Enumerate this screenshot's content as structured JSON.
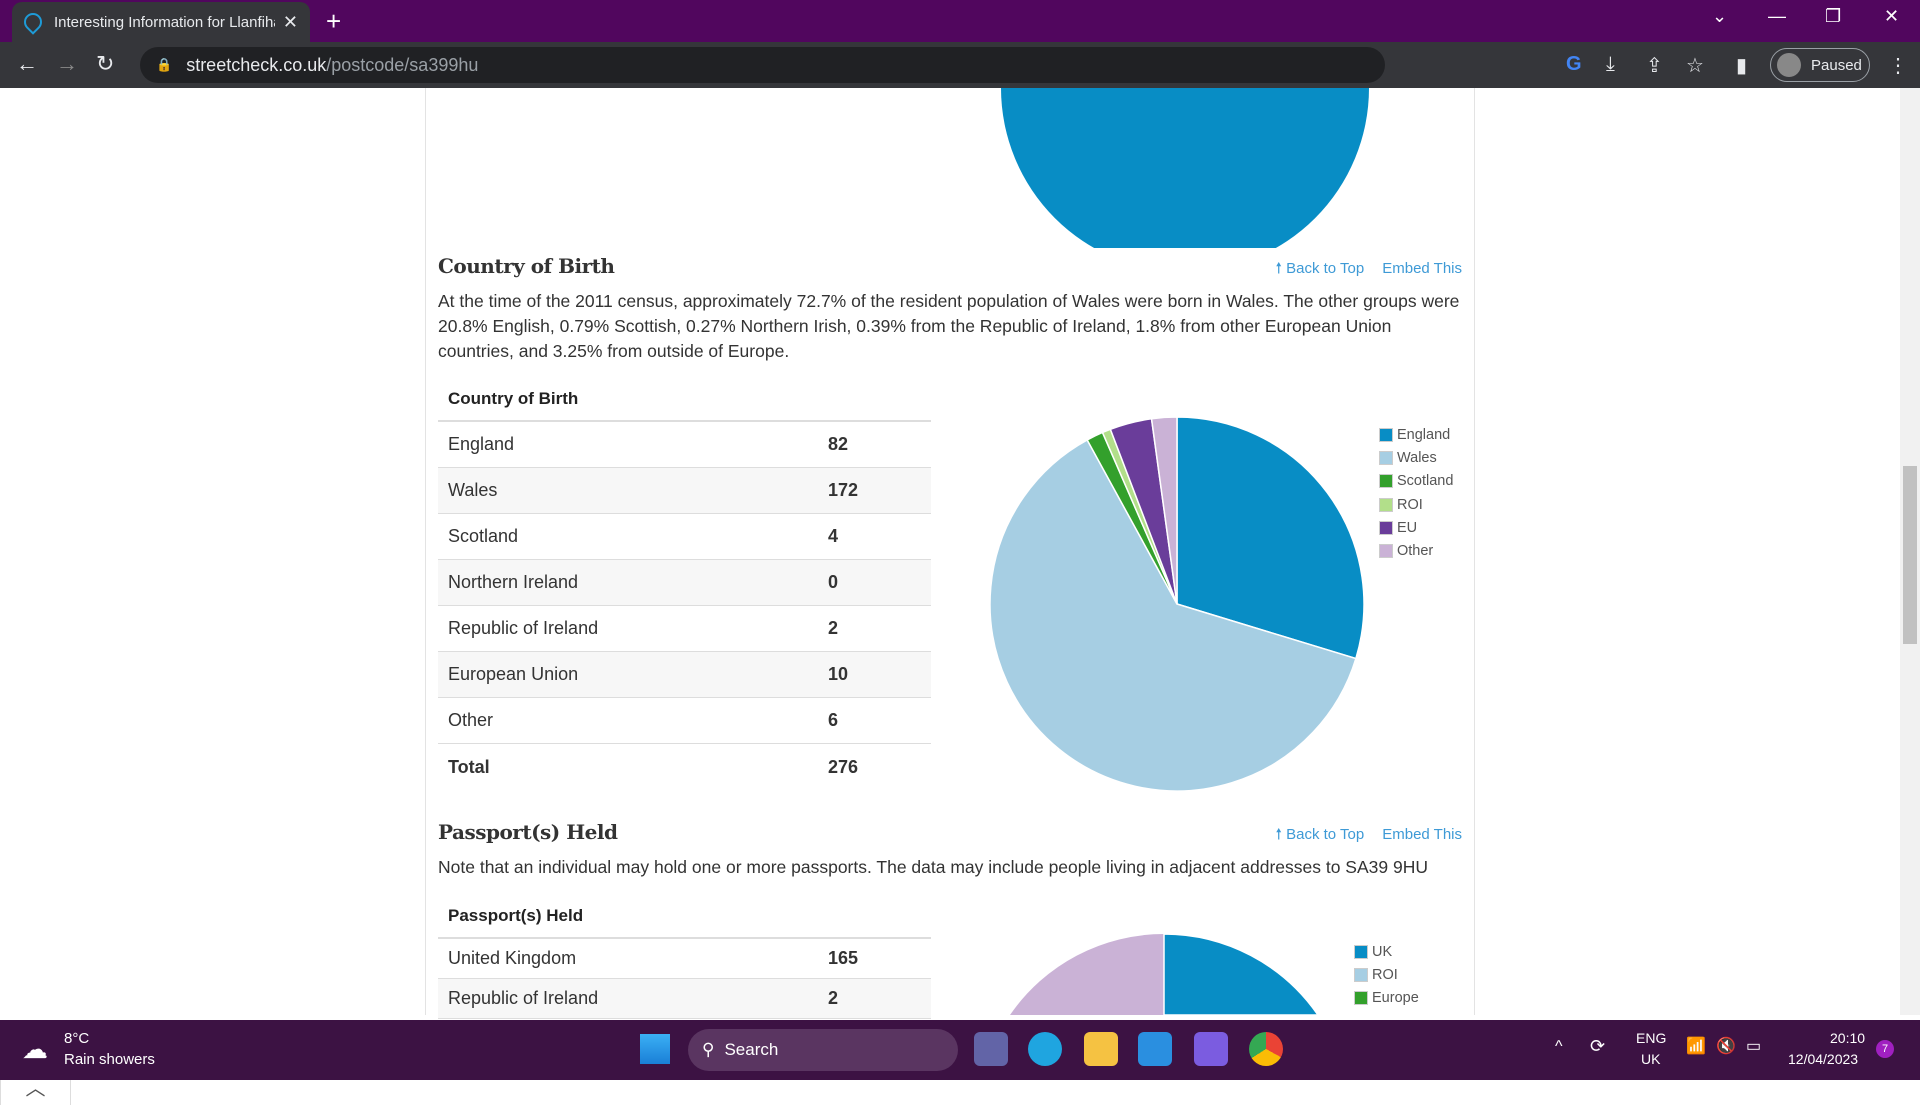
{
  "browser": {
    "tab_title": "Interesting Information for Llanfihangel",
    "url_host": "streetcheck.co.uk",
    "url_path": "/postcode/sa399hu",
    "profile_status": "Paused"
  },
  "colors": {
    "england": "#088dc5",
    "wales": "#a6cee3",
    "scotland": "#33a02c",
    "roi": "#b2df8a",
    "eu": "#6a3d9a",
    "other": "#cab2d6"
  },
  "country_section": {
    "heading": "Country of Birth",
    "back_to_top": "Back to Top",
    "embed": "Embed This",
    "paragraph": "At the time of the 2011 census, approximately 72.7% of the resident population of Wales were born in Wales. The other groups were 20.8% English, 0.79% Scottish, 0.27% Northern Irish, 0.39% from the Republic of Ireland, 1.8% from other European Union countries, and 3.25% from outside of Europe.",
    "table_title": "Country of Birth",
    "rows": [
      {
        "label": "England",
        "value": "82"
      },
      {
        "label": "Wales",
        "value": "172"
      },
      {
        "label": "Scotland",
        "value": "4"
      },
      {
        "label": "Northern Ireland",
        "value": "0"
      },
      {
        "label": "Republic of Ireland",
        "value": "2"
      },
      {
        "label": "European Union",
        "value": "10"
      },
      {
        "label": "Other",
        "value": "6"
      }
    ],
    "total_label": "Total",
    "total_value": "276"
  },
  "passport_section": {
    "heading": "Passport(s) Held",
    "back_to_top": "Back to Top",
    "embed": "Embed This",
    "paragraph": "Note that an individual may hold one or more passports. The data may include people living in adjacent addresses to SA39 9HU",
    "table_title": "Passport(s) Held",
    "rows": [
      {
        "label": "United Kingdom",
        "value": "165"
      },
      {
        "label": "Republic of Ireland",
        "value": "2"
      }
    ]
  },
  "chart_data": [
    {
      "type": "pie",
      "title": "Country of Birth",
      "categories": [
        "England",
        "Wales",
        "Scotland",
        "ROI",
        "EU",
        "Other"
      ],
      "values": [
        82,
        172,
        4,
        2,
        10,
        6
      ],
      "colors": [
        "#088dc5",
        "#a6cee3",
        "#33a02c",
        "#b2df8a",
        "#6a3d9a",
        "#cab2d6"
      ],
      "legend": "right"
    },
    {
      "type": "pie",
      "title": "Passport(s) Held",
      "categories": [
        "UK",
        "ROI",
        "Europe"
      ],
      "values": [
        165,
        2,
        null
      ],
      "colors": [
        "#088dc5",
        "#a6cee3",
        "#33a02c"
      ],
      "legend": "right"
    }
  ],
  "taskbar": {
    "temp": "8°C",
    "weather": "Rain showers",
    "search": "Search",
    "lang1": "ENG",
    "lang2": "UK",
    "time": "20:10",
    "date": "12/04/2023",
    "notif": "7"
  }
}
